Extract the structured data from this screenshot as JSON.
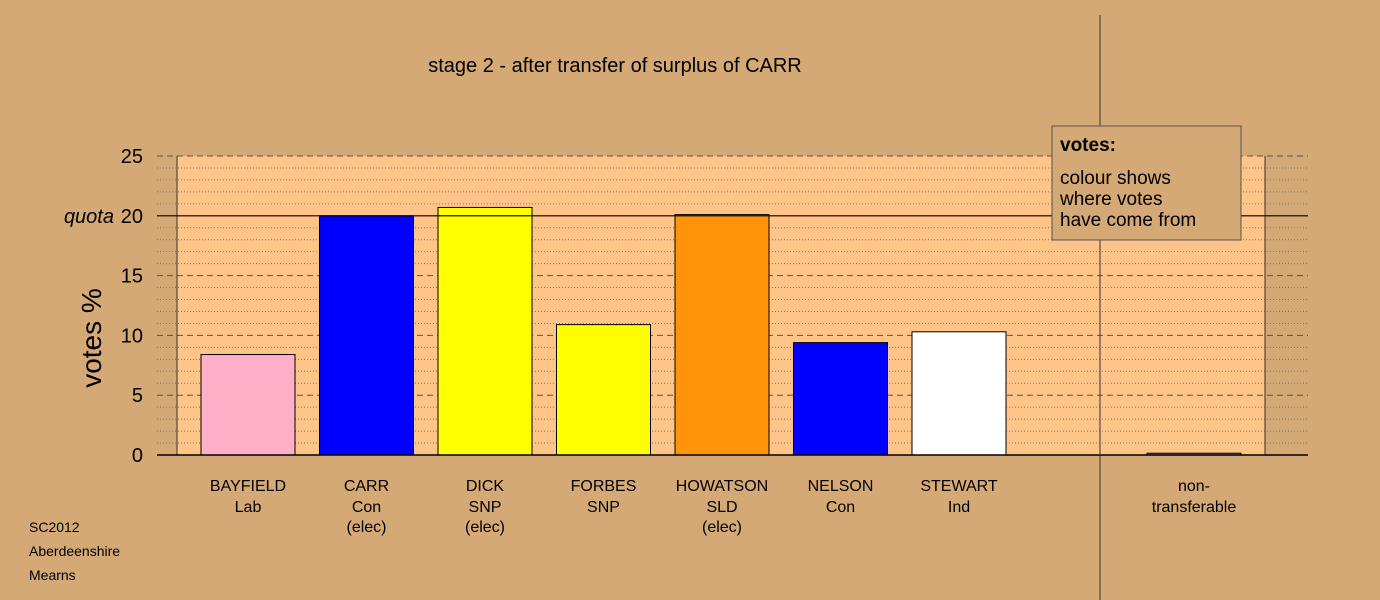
{
  "chart_data": {
    "type": "bar",
    "title": "stage 2 - after transfer of surplus of CARR",
    "ylabel": "votes %",
    "ylim": [
      0,
      25
    ],
    "yticks": [
      0,
      5,
      10,
      15,
      20,
      25
    ],
    "quota": {
      "label": "quota",
      "value": 20
    },
    "grid": true,
    "categories": [
      {
        "name": "BAYFIELD",
        "party": "Lab",
        "status": "",
        "value": 8.4,
        "color": "#ffb0c8"
      },
      {
        "name": "CARR",
        "party": "Con",
        "status": "(elec)",
        "value": 20.0,
        "color": "#0000ff"
      },
      {
        "name": "DICK",
        "party": "SNP",
        "status": "(elec)",
        "value": 20.7,
        "color": "#ffff00"
      },
      {
        "name": "FORBES",
        "party": "SNP",
        "status": "",
        "value": 10.9,
        "color": "#ffff00"
      },
      {
        "name": "HOWATSON",
        "party": "SLD",
        "status": "(elec)",
        "value": 20.1,
        "color": "#ff9408"
      },
      {
        "name": "NELSON",
        "party": "Con",
        "status": "",
        "value": 9.4,
        "color": "#0000ff"
      },
      {
        "name": "STEWART",
        "party": "Ind",
        "status": "",
        "value": 10.3,
        "color": "#ffffff"
      }
    ],
    "non_transferable": {
      "line1": "non-",
      "line2": "transferable",
      "value": 0.15
    },
    "legend": {
      "position": "top-right",
      "heading": "votes:",
      "lines": [
        "colour shows",
        "where votes",
        "have come from"
      ]
    }
  },
  "footer": {
    "line1": "SC2012",
    "line2": "Aberdeenshire",
    "line3": "Mearns"
  },
  "colors": {
    "background": "#d4a976",
    "plot_area": "#ffc488"
  }
}
